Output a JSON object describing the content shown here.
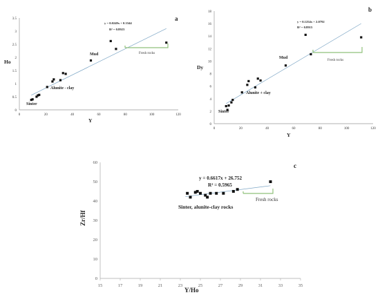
{
  "chart_data": [
    {
      "id": "a",
      "type": "scatter",
      "panel_label": "a",
      "xlabel": "Y",
      "ylabel": "Ho",
      "xlim": [
        0,
        120
      ],
      "ylim": [
        0,
        3.5
      ],
      "xticks": [
        "0",
        "20",
        "40",
        "60",
        "80",
        "100",
        "120"
      ],
      "yticks": [
        "0",
        "0.5",
        "1",
        "1.5",
        "2",
        "2.5",
        "3",
        "3.5"
      ],
      "trendline": {
        "slope": 0.0249,
        "intercept": 0.3344
      },
      "equation": "y = 0.0249x + 0.3344",
      "r2": "R² = 0.8923",
      "points": [
        [
          9,
          0.38
        ],
        [
          10,
          0.4
        ],
        [
          13,
          0.5
        ],
        [
          14,
          0.55
        ],
        [
          15,
          0.57
        ],
        [
          21,
          0.87
        ],
        [
          25,
          1.08
        ],
        [
          26,
          1.16
        ],
        [
          31,
          1.13
        ],
        [
          33,
          1.4
        ],
        [
          35,
          1.37
        ],
        [
          54,
          1.88
        ],
        [
          69,
          2.62
        ],
        [
          73,
          2.32
        ],
        [
          111,
          2.56
        ]
      ],
      "annotations": [
        "Sinter",
        "Alunite - clay",
        "Mud"
      ],
      "fresh_label": "Fresh rocks"
    },
    {
      "id": "b",
      "type": "scatter",
      "panel_label": "b",
      "xlabel": "Y",
      "ylabel": "Dy",
      "xlim": [
        0,
        120
      ],
      "ylim": [
        0,
        18
      ],
      "xticks": [
        "0",
        "20",
        "40",
        "60",
        "80",
        "100",
        "120"
      ],
      "yticks": [
        "0",
        "2",
        "4",
        "6",
        "8",
        "10",
        "12",
        "14",
        "16",
        "18"
      ],
      "trendline": {
        "slope": 0.1254,
        "intercept": 2.0792
      },
      "equation": "y = 0.1254x + 2.0792",
      "r2": "R² = 0.8915",
      "points": [
        [
          9,
          2.8
        ],
        [
          10,
          2.2
        ],
        [
          11,
          2.9
        ],
        [
          13,
          3.4
        ],
        [
          14,
          3.8
        ],
        [
          21,
          5.0
        ],
        [
          25,
          6.2
        ],
        [
          26,
          6.8
        ],
        [
          31,
          5.8
        ],
        [
          33,
          7.2
        ],
        [
          35,
          6.9
        ],
        [
          54,
          9.3
        ],
        [
          69,
          14.2
        ],
        [
          73,
          11.1
        ],
        [
          111,
          13.8
        ]
      ],
      "annotations": [
        "Sinter",
        "Alunite + clay",
        "Mud"
      ],
      "fresh_label": "Fresh rocks"
    },
    {
      "id": "c",
      "type": "scatter",
      "panel_label": "c",
      "xlabel": "Y/Ho",
      "ylabel": "Zr/Hf",
      "xlim": [
        15,
        35
      ],
      "ylim": [
        0,
        60
      ],
      "xticks": [
        "15",
        "17",
        "19",
        "21",
        "23",
        "25",
        "27",
        "29",
        "31",
        "33",
        "35"
      ],
      "yticks": [
        "0",
        "10",
        "20",
        "30",
        "40",
        "50",
        "60"
      ],
      "trendline": {
        "slope": 0.6617,
        "intercept": 26.752
      },
      "equation": "y = 0.6617x + 26.752",
      "r2": "R² = 0.5965",
      "points": [
        [
          23.7,
          44
        ],
        [
          24,
          42
        ],
        [
          24.5,
          44.5
        ],
        [
          24.7,
          45
        ],
        [
          25,
          44
        ],
        [
          25.5,
          43
        ],
        [
          25.7,
          42
        ],
        [
          26,
          44
        ],
        [
          26.6,
          44
        ],
        [
          27.3,
          44
        ],
        [
          28.3,
          45
        ],
        [
          28.7,
          46
        ],
        [
          32,
          50
        ]
      ],
      "annotations": [
        "Sinter, alunite-clay rocks"
      ],
      "fresh_label": "Fresh rocks"
    }
  ]
}
